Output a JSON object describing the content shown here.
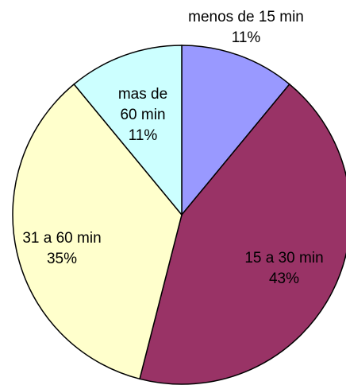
{
  "chart_data": {
    "type": "pie",
    "categories": [
      "menos de 15 min",
      "15 a 30 min",
      "31 a 60 min",
      "mas de 60 min"
    ],
    "values": [
      11,
      43,
      35,
      11
    ],
    "value_labels": [
      "11%",
      "43%",
      "35%",
      "11%"
    ],
    "colors": [
      "#9999ff",
      "#993366",
      "#ffffcc",
      "#ccffff"
    ]
  }
}
